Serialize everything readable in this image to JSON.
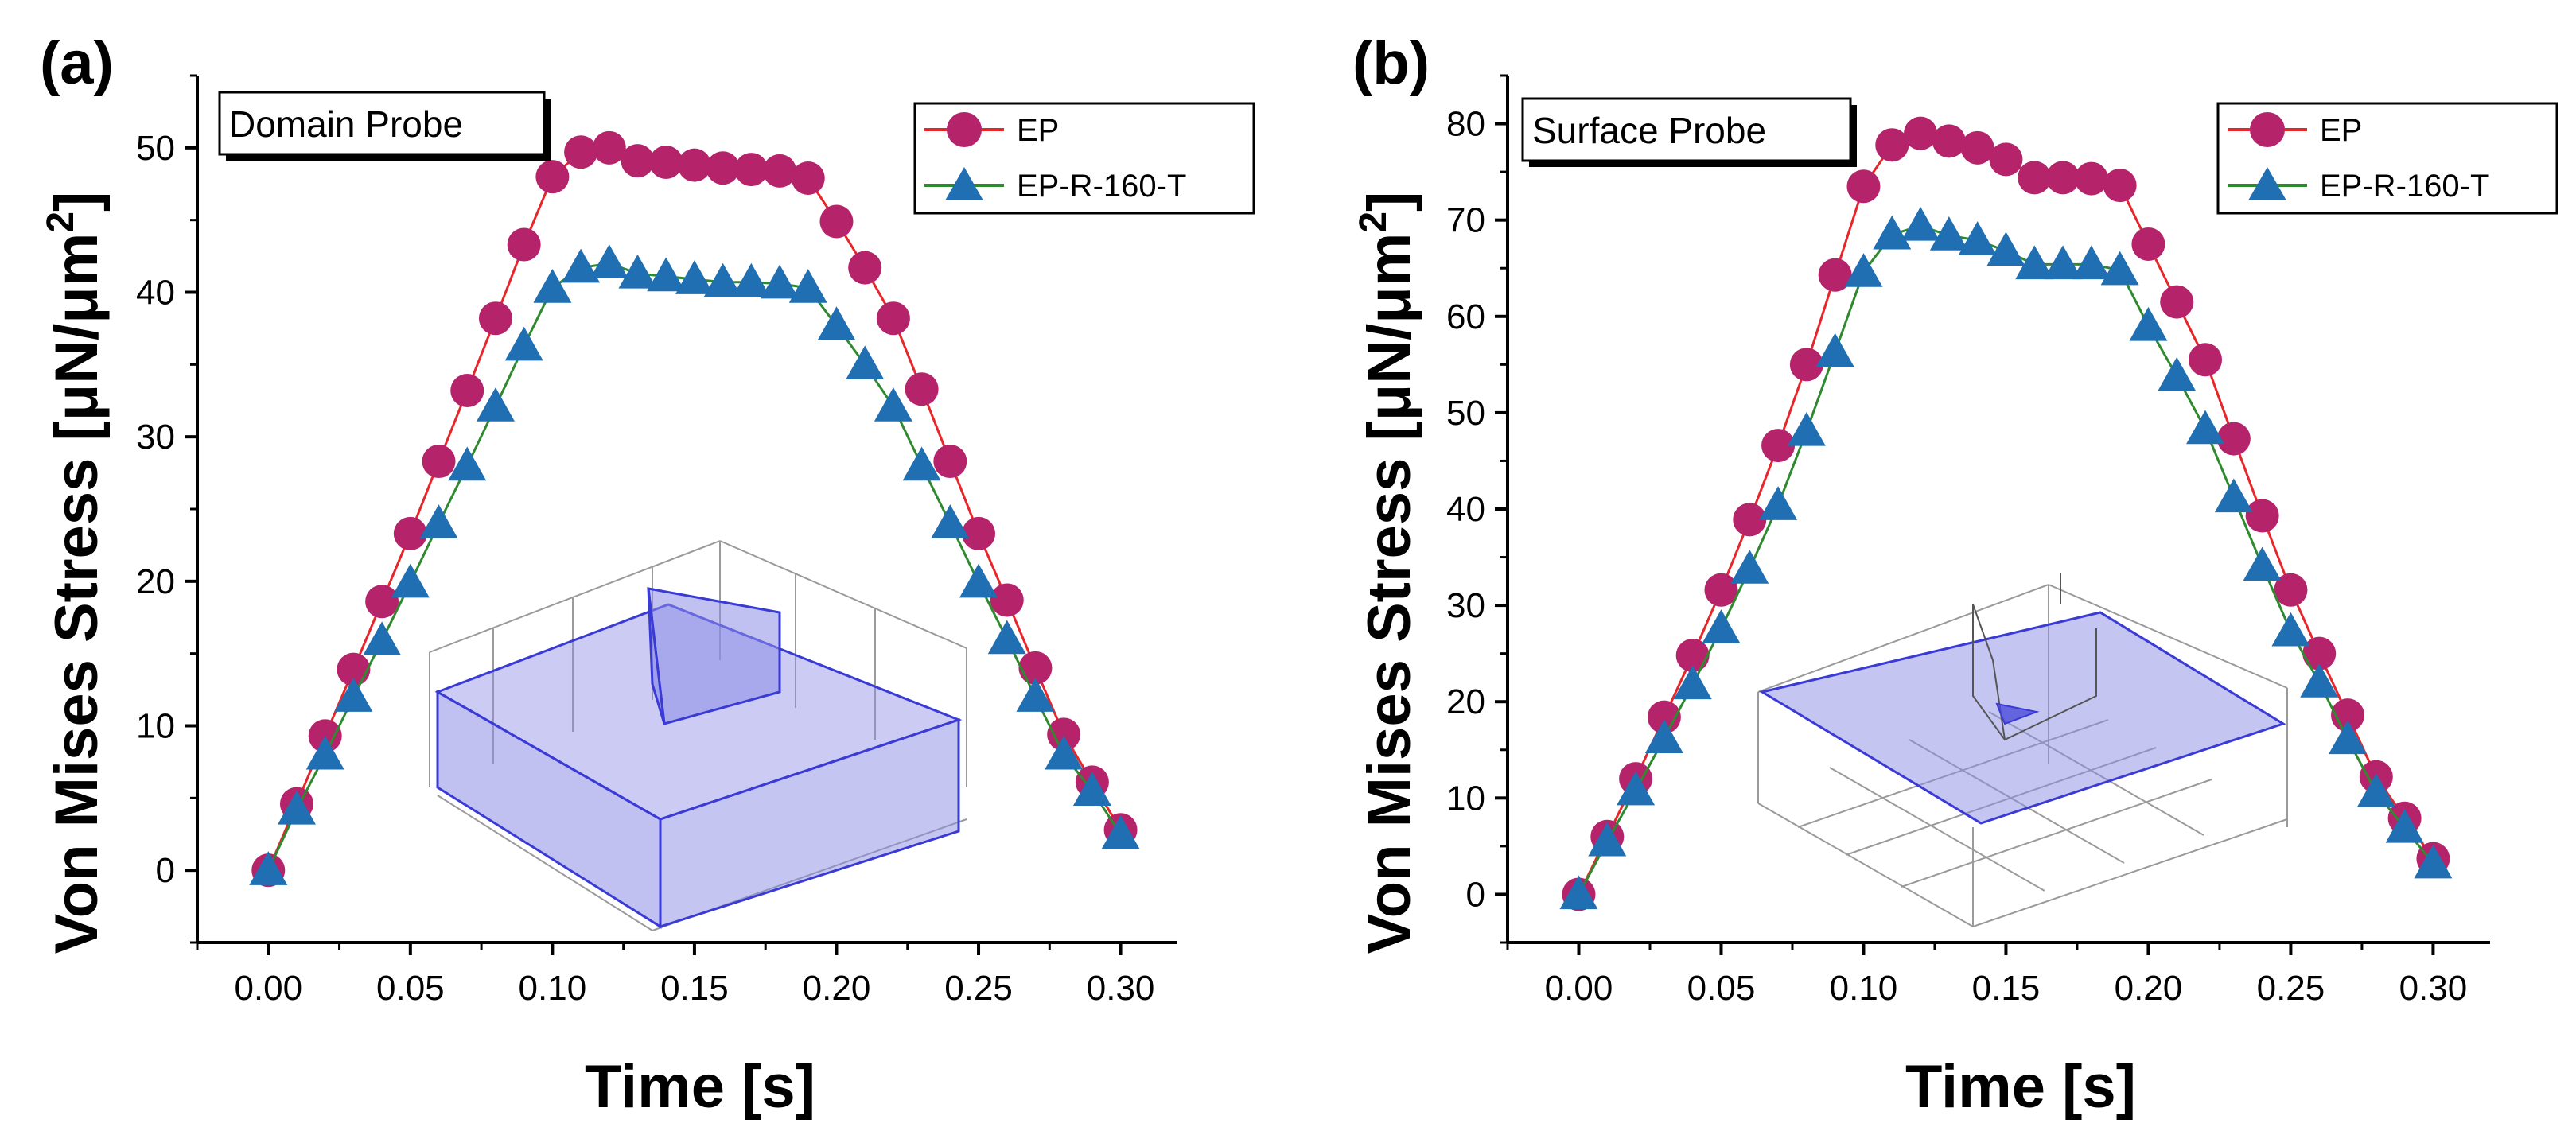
{
  "figure": {
    "panels": [
      {
        "id": "a",
        "letter": "(a)",
        "probe_label": "Domain Probe",
        "inset": "3D box with triangular block (probe domain)"
      },
      {
        "id": "b",
        "letter": "(b)",
        "probe_label": "Surface Probe",
        "inset": "3D plane with triangular surface (probe surface)"
      }
    ]
  },
  "colors": {
    "ep_line": "#e8262a",
    "ep_marker": "#b5236b",
    "ept_line": "#2f8a2f",
    "ept_marker": "#1f6fb2",
    "inset_fill": "#8c8ce6",
    "inset_edge": "#3a3ad6",
    "inset_grid": "#9a9a9a"
  },
  "chart_data": [
    {
      "type": "line",
      "title": "Domain Probe",
      "xlabel": "Time [s]",
      "ylabel_main": "Von Mises Stress [μN/μm",
      "ylabel_sup": "2",
      "ylabel_end": "]",
      "xlim": [
        -0.025,
        0.32
      ],
      "ylim": [
        -5,
        55
      ],
      "xticks": [
        "0.00",
        "0.05",
        "0.10",
        "0.15",
        "0.20",
        "0.25",
        "0.30"
      ],
      "xtick_values": [
        0,
        0.05,
        0.1,
        0.15,
        0.2,
        0.25,
        0.3
      ],
      "yticks": [
        "0",
        "10",
        "20",
        "30",
        "40",
        "50"
      ],
      "ytick_values": [
        0,
        10,
        20,
        30,
        40,
        50
      ],
      "legend_position": "top-right",
      "x": [
        0,
        0.01,
        0.02,
        0.03,
        0.04,
        0.05,
        0.06,
        0.07,
        0.08,
        0.09,
        0.1,
        0.11,
        0.12,
        0.13,
        0.14,
        0.15,
        0.16,
        0.17,
        0.18,
        0.19,
        0.2,
        0.21,
        0.22,
        0.23,
        0.24,
        0.25,
        0.26,
        0.27,
        0.28,
        0.29,
        0.3
      ],
      "series": [
        {
          "name": "EP",
          "marker": "circle",
          "values": [
            0,
            4.6,
            9.3,
            13.9,
            18.6,
            23.3,
            28.3,
            33.2,
            38.2,
            43.3,
            48.0,
            49.7,
            50.0,
            49.1,
            49.0,
            48.8,
            48.6,
            48.5,
            48.4,
            47.9,
            44.9,
            41.7,
            38.2,
            33.3,
            28.3,
            23.3,
            18.7,
            14.0,
            9.4,
            6.1,
            2.8
          ]
        },
        {
          "name": "EP-R-160-T",
          "marker": "triangle",
          "values": [
            0,
            4.2,
            8.0,
            12.0,
            15.9,
            19.9,
            24.0,
            28.0,
            32.1,
            36.3,
            40.3,
            41.7,
            42.0,
            41.3,
            41.1,
            40.9,
            40.7,
            40.7,
            40.6,
            40.3,
            37.7,
            35.0,
            32.1,
            28.0,
            24.0,
            19.9,
            16.0,
            12.0,
            8.0,
            5.5,
            2.5
          ]
        }
      ]
    },
    {
      "type": "line",
      "title": "Surface Probe",
      "xlabel": "Time [s]",
      "ylabel_main": "Von Mises Stress [μN/μm",
      "ylabel_sup": "2",
      "ylabel_end": "]",
      "xlim": [
        -0.025,
        0.32
      ],
      "ylim": [
        -5,
        85
      ],
      "xticks": [
        "0.00",
        "0.05",
        "0.10",
        "0.15",
        "0.20",
        "0.25",
        "0.30"
      ],
      "xtick_values": [
        0,
        0.05,
        0.1,
        0.15,
        0.2,
        0.25,
        0.3
      ],
      "yticks": [
        "0",
        "10",
        "20",
        "30",
        "40",
        "50",
        "60",
        "70",
        "80"
      ],
      "ytick_values": [
        0,
        10,
        20,
        30,
        40,
        50,
        60,
        70,
        80
      ],
      "legend_position": "top-right",
      "x": [
        0,
        0.01,
        0.02,
        0.03,
        0.04,
        0.05,
        0.06,
        0.07,
        0.08,
        0.09,
        0.1,
        0.11,
        0.12,
        0.13,
        0.14,
        0.15,
        0.16,
        0.17,
        0.18,
        0.19,
        0.2,
        0.21,
        0.22,
        0.23,
        0.24,
        0.25,
        0.26,
        0.27,
        0.28,
        0.29,
        0.3
      ],
      "series": [
        {
          "name": "EP",
          "marker": "circle",
          "values": [
            0,
            6.0,
            12.0,
            18.4,
            24.8,
            31.6,
            38.9,
            46.6,
            55.0,
            64.3,
            73.5,
            77.8,
            79.0,
            78.2,
            77.5,
            76.3,
            74.4,
            74.4,
            74.3,
            73.6,
            67.5,
            61.5,
            55.5,
            47.3,
            39.3,
            31.6,
            25.0,
            18.6,
            12.2,
            7.9,
            3.7
          ]
        },
        {
          "name": "EP-R-160-T",
          "marker": "triangle",
          "values": [
            0,
            5.5,
            10.8,
            16.2,
            21.8,
            27.6,
            33.8,
            40.4,
            48.1,
            56.3,
            64.6,
            68.5,
            69.4,
            68.4,
            67.9,
            66.8,
            65.4,
            65.4,
            65.4,
            64.8,
            59.0,
            53.8,
            48.3,
            41.2,
            34.1,
            27.3,
            22.0,
            16.1,
            10.6,
            6.9,
            3.2
          ]
        }
      ]
    }
  ]
}
